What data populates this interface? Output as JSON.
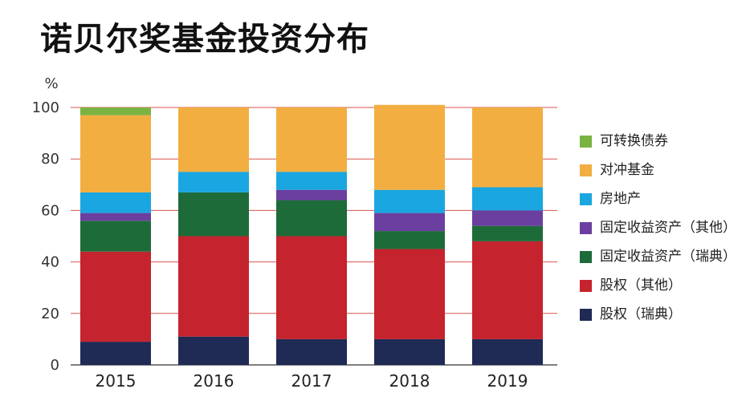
{
  "chart_data": {
    "type": "bar",
    "stacked": true,
    "title": "诺贝尔奖基金投资分布",
    "ylabel": "%",
    "ylim": [
      0,
      100
    ],
    "yticks": [
      0,
      20,
      40,
      60,
      80,
      100
    ],
    "categories": [
      "2015",
      "2016",
      "2017",
      "2018",
      "2019"
    ],
    "legend_position": "right",
    "series": [
      {
        "name": "股权（瑞典）",
        "color": "#1f2a55",
        "values": [
          9,
          11,
          10,
          10,
          10
        ]
      },
      {
        "name": "股权（其他）",
        "color": "#c5232d",
        "values": [
          35,
          39,
          40,
          35,
          38
        ]
      },
      {
        "name": "固定收益资产（瑞典）",
        "color": "#1e6b3a",
        "values": [
          12,
          17,
          14,
          7,
          6
        ]
      },
      {
        "name": "固定收益资产（其他）",
        "color": "#6b3fa0",
        "values": [
          3,
          0,
          4,
          7,
          6
        ]
      },
      {
        "name": "房地产",
        "color": "#1aa6e0",
        "values": [
          8,
          8,
          7,
          9,
          9
        ]
      },
      {
        "name": "对冲基金",
        "color": "#f2ae40",
        "values": [
          30,
          25,
          25,
          33,
          31
        ]
      },
      {
        "name": "可转换债券",
        "color": "#7bb342",
        "values": [
          3,
          0,
          0,
          0,
          0
        ]
      }
    ],
    "legend_order": [
      "可转换债券",
      "对冲基金",
      "房地产",
      "固定收益资产（其他）",
      "固定收益资产（瑞典）",
      "股权（其他）",
      "股权（瑞典）"
    ]
  }
}
